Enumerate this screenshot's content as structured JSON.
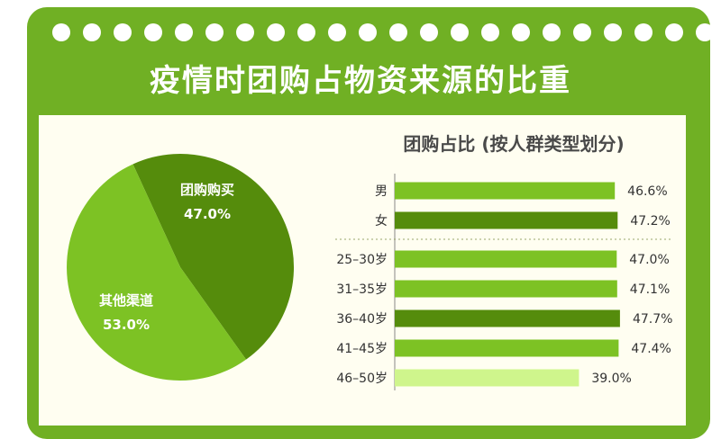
{
  "title": "疫情时团购占物资来源的比重",
  "colors": {
    "frame": "#70b024",
    "panel": "#fffef1",
    "dark_green": "#558c0c",
    "mid_green": "#7dc224",
    "light_green": "#cff58c"
  },
  "chart_data": [
    {
      "type": "pie",
      "title": "",
      "slices": [
        {
          "label": "团购购买",
          "value": 47.0,
          "display": "47.0%",
          "color": "#558c0c"
        },
        {
          "label": "其他渠道",
          "value": 53.0,
          "display": "53.0%",
          "color": "#7dc224"
        }
      ]
    },
    {
      "type": "bar",
      "orientation": "horizontal",
      "title": "团购占比 (按人群类型划分)",
      "xlim": [
        0,
        50
      ],
      "groups": [
        {
          "name": "gender",
          "categories": [
            "男",
            "女"
          ],
          "values": [
            46.6,
            47.2
          ]
        },
        {
          "name": "age",
          "categories": [
            "25–30岁",
            "31–35岁",
            "36–40岁",
            "41–45岁",
            "46–50岁"
          ],
          "values": [
            47.0,
            47.1,
            47.7,
            47.4,
            39.0
          ]
        }
      ],
      "bars": [
        {
          "label": "男",
          "value": 46.6,
          "display": "46.6%",
          "color": "#7dc224"
        },
        {
          "label": "女",
          "value": 47.2,
          "display": "47.2%",
          "color": "#558c0c"
        },
        {
          "label": "25–30岁",
          "value": 47.0,
          "display": "47.0%",
          "color": "#7dc224"
        },
        {
          "label": "31–35岁",
          "value": 47.1,
          "display": "47.1%",
          "color": "#7dc224"
        },
        {
          "label": "36–40岁",
          "value": 47.7,
          "display": "47.7%",
          "color": "#558c0c"
        },
        {
          "label": "41–45岁",
          "value": 47.4,
          "display": "47.4%",
          "color": "#7dc224"
        },
        {
          "label": "46–50岁",
          "value": 39.0,
          "display": "39.0%",
          "color": "#cff58c"
        }
      ],
      "divider_after_index": 1
    }
  ]
}
